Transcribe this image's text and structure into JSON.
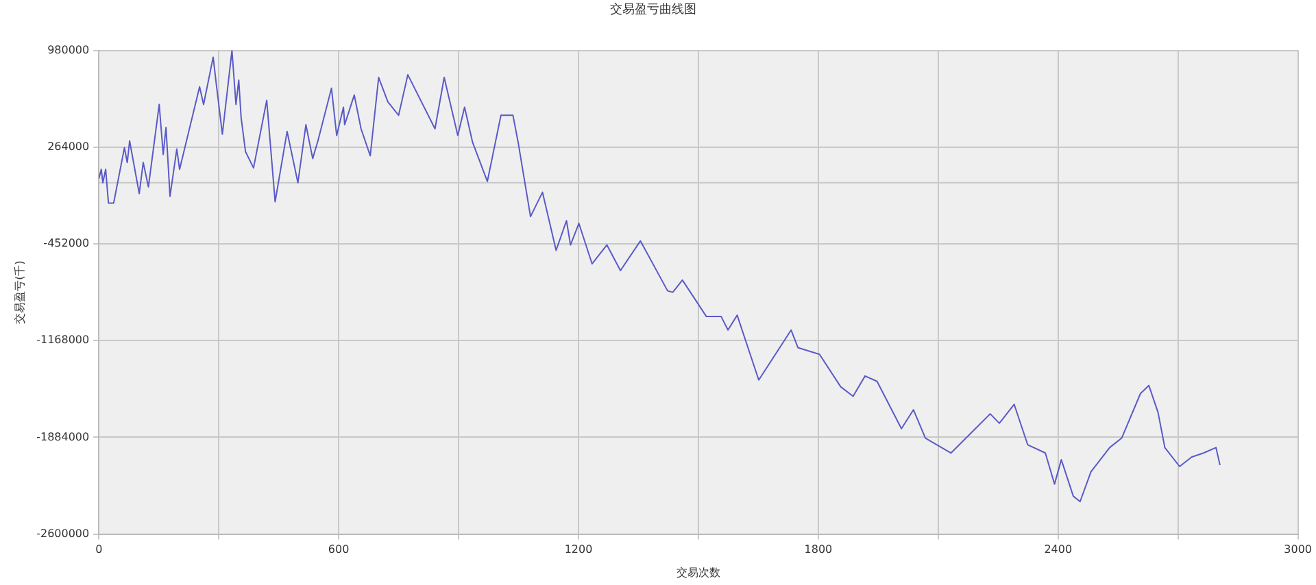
{
  "chart_data": {
    "type": "line",
    "title": "交易盈亏曲线图",
    "xlabel": "交易次数",
    "ylabel": "交易盈亏(千)",
    "xlim": [
      0,
      3000
    ],
    "xticks": [
      0,
      {
        "value": 300,
        "label": null
      },
      600,
      {
        "value": 900,
        "label": null
      },
      1200,
      {
        "value": 1500,
        "label": null
      },
      1800,
      {
        "value": 2100,
        "label": null
      },
      2400,
      {
        "value": 2700,
        "label": null
      },
      3000
    ],
    "ylim": [
      -2600000,
      980000
    ],
    "yticks": [
      -2600000,
      -1884000,
      -1168000,
      -452000,
      264000,
      980000
    ],
    "grid": true,
    "legend": false,
    "marker": "none",
    "line_style": "solid",
    "ref_lines": [
      {
        "axis": "y",
        "value": 0,
        "color": "#c8c8c8"
      }
    ],
    "series": [
      {
        "color": "#5a5ac8",
        "x": [
          0,
          6,
          10,
          17,
          24,
          37,
          64,
          71,
          77,
          101,
          111,
          124,
          151,
          161,
          168,
          178,
          195,
          202,
          252,
          262,
          286,
          293,
          309,
          333,
          343,
          350,
          356,
          367,
          387,
          420,
          441,
          471,
          498,
          518,
          535,
          548,
          582,
          595,
          612,
          615,
          639,
          656,
          679,
          700,
          723,
          750,
          773,
          841,
          864,
          898,
          915,
          935,
          972,
          1006,
          1036,
          1049,
          1080,
          1110,
          1144,
          1170,
          1180,
          1201,
          1234,
          1271,
          1305,
          1355,
          1423,
          1436,
          1460,
          1520,
          1557,
          1574,
          1597,
          1651,
          1732,
          1749,
          1803,
          1856,
          1887,
          1917,
          1947,
          2008,
          2038,
          2068,
          2132,
          2193,
          2230,
          2253,
          2290,
          2324,
          2368,
          2391,
          2408,
          2438,
          2455,
          2482,
          2529,
          2559,
          2606,
          2627,
          2650,
          2667,
          2704,
          2734,
          2764,
          2795,
          2805
        ],
        "values": [
          30000,
          100000,
          0,
          100000,
          -150000,
          -150000,
          260000,
          150000,
          310000,
          -80000,
          150000,
          -30000,
          580000,
          210000,
          410000,
          -100000,
          250000,
          100000,
          710000,
          580000,
          930000,
          750000,
          360000,
          980000,
          580000,
          760000,
          480000,
          230000,
          110000,
          610000,
          -140000,
          380000,
          0,
          430000,
          180000,
          310000,
          700000,
          350000,
          560000,
          430000,
          650000,
          400000,
          200000,
          780000,
          600000,
          500000,
          800000,
          400000,
          780000,
          350000,
          560000,
          300000,
          10000,
          500000,
          500000,
          300000,
          -250000,
          -70000,
          -500000,
          -280000,
          -460000,
          -300000,
          -600000,
          -460000,
          -650000,
          -430000,
          -800000,
          -810000,
          -720000,
          -990000,
          -990000,
          -1090000,
          -980000,
          -1460000,
          -1090000,
          -1220000,
          -1270000,
          -1510000,
          -1580000,
          -1430000,
          -1470000,
          -1820000,
          -1680000,
          -1890000,
          -2000000,
          -1820000,
          -1710000,
          -1780000,
          -1640000,
          -1940000,
          -2000000,
          -2230000,
          -2050000,
          -2320000,
          -2360000,
          -2140000,
          -1960000,
          -1890000,
          -1560000,
          -1500000,
          -1700000,
          -1960000,
          -2100000,
          -2030000,
          -2000000,
          -1960000,
          -2090000
        ]
      }
    ]
  }
}
